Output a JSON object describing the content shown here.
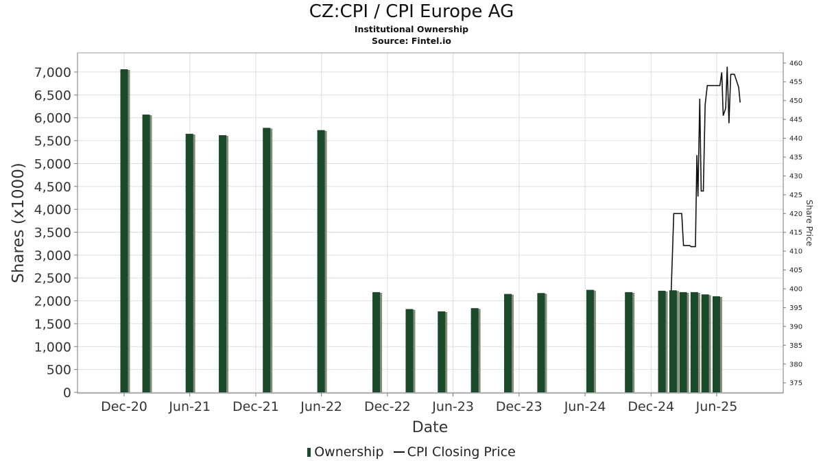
{
  "chart_data": {
    "type": "bar",
    "title": "CZ:CPI / CPI Europe AG",
    "subtitle": "Institutional Ownership",
    "source": "Source: Fintel.io",
    "xlabel": "Date",
    "ylabel": "Shares (x1000)",
    "y2label": "Share Price",
    "x_tick_labels": [
      "Dec-20",
      "Jun-21",
      "Dec-21",
      "Jun-22",
      "Dec-22",
      "Jun-23",
      "Dec-23",
      "Jun-24",
      "Dec-24",
      "Jun-25"
    ],
    "y_ticks": [
      0,
      500,
      1000,
      1500,
      2000,
      2500,
      3000,
      3500,
      4000,
      4500,
      5000,
      5500,
      6000,
      6500,
      7000
    ],
    "y_tick_labels": [
      "0",
      "500",
      "1,000",
      "1,500",
      "2,000",
      "2,500",
      "3,000",
      "3,500",
      "4,000",
      "4,500",
      "5,000",
      "5,500",
      "6,000",
      "6,500",
      "7,000"
    ],
    "y2_ticks": [
      375,
      380,
      385,
      390,
      395,
      400,
      405,
      410,
      415,
      420,
      425,
      430,
      435,
      440,
      445,
      450,
      455,
      460
    ],
    "ylim": [
      0,
      7400
    ],
    "y2lim": [
      372.3,
      462.7
    ],
    "grid": true,
    "legend_position": "bottom",
    "colors": {
      "bar": "#1b4a2a",
      "bar_shadow": "#8a8a7a",
      "line": "#111111",
      "grid": "#dddddd"
    },
    "series": [
      {
        "name": "Ownership",
        "type": "bar",
        "points": [
          {
            "date": "2020-12-01",
            "value": 7060
          },
          {
            "date": "2021-01-31",
            "value": 6070
          },
          {
            "date": "2021-05-31",
            "value": 5650
          },
          {
            "date": "2021-08-31",
            "value": 5620
          },
          {
            "date": "2021-12-31",
            "value": 5780
          },
          {
            "date": "2022-05-31",
            "value": 5730
          },
          {
            "date": "2022-10-31",
            "value": 2190
          },
          {
            "date": "2023-01-31",
            "value": 1820
          },
          {
            "date": "2023-04-30",
            "value": 1770
          },
          {
            "date": "2023-07-31",
            "value": 1840
          },
          {
            "date": "2023-10-31",
            "value": 2150
          },
          {
            "date": "2024-01-31",
            "value": 2170
          },
          {
            "date": "2024-06-15",
            "value": 2240
          },
          {
            "date": "2024-09-30",
            "value": 2190
          },
          {
            "date": "2024-12-31",
            "value": 2220
          },
          {
            "date": "2025-01-31",
            "value": 2230
          },
          {
            "date": "2025-02-28",
            "value": 2190
          },
          {
            "date": "2025-03-31",
            "value": 2190
          },
          {
            "date": "2025-04-30",
            "value": 2140
          },
          {
            "date": "2025-05-31",
            "value": 2100
          }
        ]
      },
      {
        "name": "CPI Closing Price",
        "type": "line",
        "axis": "right",
        "points": [
          {
            "date": "2025-01-26",
            "value": 399.5
          },
          {
            "date": "2025-02-02",
            "value": 420.0
          },
          {
            "date": "2025-02-24",
            "value": 420.0
          },
          {
            "date": "2025-03-01",
            "value": 411.5
          },
          {
            "date": "2025-03-18",
            "value": 411.5
          },
          {
            "date": "2025-03-22",
            "value": 411.2
          },
          {
            "date": "2025-04-03",
            "value": 411.2
          },
          {
            "date": "2025-04-07",
            "value": 435.5
          },
          {
            "date": "2025-04-10",
            "value": 424.5
          },
          {
            "date": "2025-04-15",
            "value": 450.5
          },
          {
            "date": "2025-04-19",
            "value": 426.0
          },
          {
            "date": "2025-04-25",
            "value": 426.0
          },
          {
            "date": "2025-04-30",
            "value": 449.0
          },
          {
            "date": "2025-05-06",
            "value": 454.0
          },
          {
            "date": "2025-06-10",
            "value": 454.0
          },
          {
            "date": "2025-06-15",
            "value": 457.5
          },
          {
            "date": "2025-06-19",
            "value": 446.0
          },
          {
            "date": "2025-06-26",
            "value": 448.0
          },
          {
            "date": "2025-06-30",
            "value": 459.0
          },
          {
            "date": "2025-07-05",
            "value": 444.0
          },
          {
            "date": "2025-07-10",
            "value": 457.0
          },
          {
            "date": "2025-07-20",
            "value": 457.0
          },
          {
            "date": "2025-07-27",
            "value": 455.0
          },
          {
            "date": "2025-08-01",
            "value": 453.5
          },
          {
            "date": "2025-08-05",
            "value": 449.5
          }
        ]
      }
    ]
  }
}
